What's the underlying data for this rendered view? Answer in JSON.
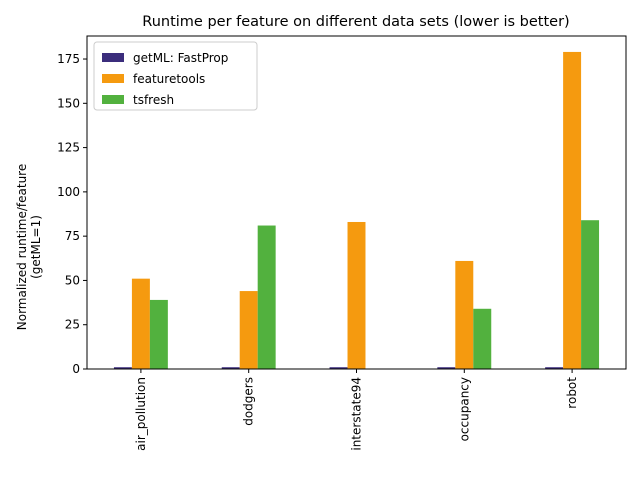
{
  "chart_data": {
    "type": "bar",
    "title": "Runtime per feature on different data sets (lower is better)",
    "xlabel": "",
    "ylabel_lines": [
      "Normalized runtime/feature",
      "(getML=1)"
    ],
    "categories": [
      "air_pollution",
      "dodgers",
      "interstate94",
      "occupancy",
      "robot"
    ],
    "series": [
      {
        "name": "getML: FastProp",
        "color": "#3b2d7c",
        "values": [
          1,
          1,
          1,
          1,
          1
        ]
      },
      {
        "name": "featuretools",
        "color": "#f59a0f",
        "values": [
          51,
          44,
          83,
          61,
          179
        ]
      },
      {
        "name": "tsfresh",
        "color": "#52b13e",
        "values": [
          39,
          81,
          null,
          34,
          84
        ]
      }
    ],
    "ylim": [
      0,
      188
    ],
    "yticks": [
      0,
      25,
      50,
      75,
      100,
      125,
      150,
      175
    ],
    "grid": false,
    "legend_position": "top-left"
  }
}
